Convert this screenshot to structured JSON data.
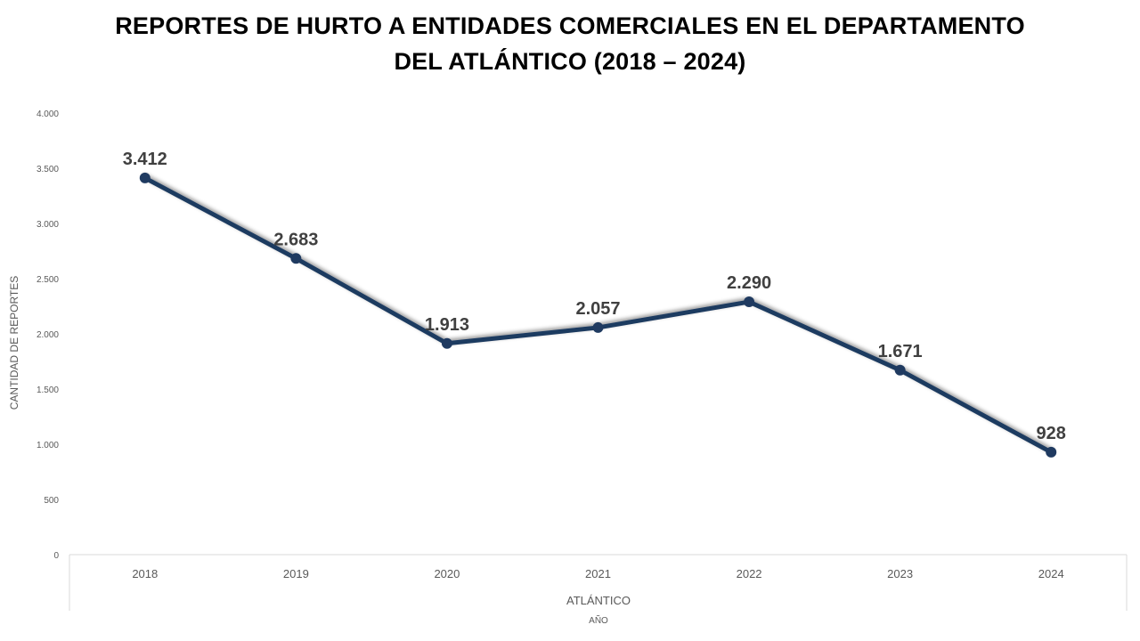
{
  "chart_data": {
    "type": "line",
    "title_line1": "REPORTES DE HURTO A ENTIDADES COMERCIALES EN EL DEPARTAMENTO",
    "title_line2": "DEL ATLÁNTICO (2018 – 2024)",
    "ylabel": "CANTIDAD DE REPORTES",
    "xlabel": "AÑO",
    "group_label": "ATLÁNTICO",
    "categories": [
      "2018",
      "2019",
      "2020",
      "2021",
      "2022",
      "2023",
      "2024"
    ],
    "series": [
      {
        "values": [
          3412,
          2683,
          1913,
          2057,
          2290,
          1671,
          928
        ],
        "labels": [
          "3.412",
          "2.683",
          "1.913",
          "2.057",
          "2.290",
          "1.671",
          "928"
        ],
        "color": "#1f3a60"
      }
    ],
    "ylim": [
      0,
      4000
    ],
    "yticks": [
      0,
      500,
      1000,
      1500,
      2000,
      2500,
      3000,
      3500,
      4000
    ],
    "ytick_labels": [
      "0",
      "500",
      "1.000",
      "1.500",
      "2.000",
      "2.500",
      "3.000",
      "3.500",
      "4.000"
    ],
    "grid": false,
    "legend": "none",
    "line_color": "#1f3a60",
    "axis_color": "#d9d9d9"
  }
}
